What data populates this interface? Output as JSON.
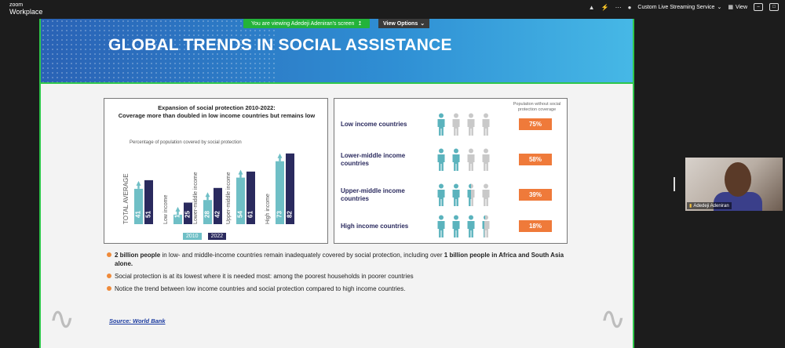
{
  "app": {
    "brand_top": "zoom",
    "brand_bottom": "Workplace",
    "viewing_text": "You are viewing  Adedeji Adeniran's screen",
    "view_options": "View Options",
    "live_streaming": "Custom Live Streaming Service",
    "view": "View"
  },
  "slide": {
    "title": "GLOBAL TRENDS  IN SOCIAL ASSISTANCE",
    "left_panel": {
      "title_line1": "Expansion of social protection 2010-2022:",
      "title_line2": "Coverage more than doubled in low income countries but remains low",
      "subtitle": "Percentage of population covered by social protection",
      "legend": [
        "2010",
        "2022"
      ]
    },
    "right_panel": {
      "header": "Population without social protection coverage",
      "rows": [
        {
          "label": "Low income countries",
          "pct": "75%",
          "covered": 1
        },
        {
          "label": "Lower-middle income countries",
          "pct": "58%",
          "covered": 2
        },
        {
          "label": "Upper-middle income countries",
          "pct": "39%",
          "covered": 2.5
        },
        {
          "label": "High income countries",
          "pct": "18%",
          "covered": 3.3
        }
      ]
    },
    "bullets": [
      {
        "b1": "2 billion people",
        "t1": " in low- and middle-income countries remain inadequately covered by social protection, including over ",
        "b2": "1 billion people in Africa and South Asia alone.",
        "t2": ""
      },
      {
        "b1": "",
        "t1": "Social protection is at its lowest where it is needed most: among the poorest households in poorer countries",
        "b2": "",
        "t2": ""
      },
      {
        "b1": "",
        "t1": "Notice the trend between low income countries and social protection compared to high income countries.",
        "b2": "",
        "t2": ""
      }
    ],
    "source": "Source: World Bank"
  },
  "participant": {
    "name": "Adedeji Adeniran"
  },
  "colors": {
    "bar2010": "#6fbfc6",
    "bar2022": "#2a2a5e",
    "badge": "#ef7a3a",
    "person_covered": "#5bb3bd",
    "person_uncovered": "#c9c9c9"
  },
  "chart_data": {
    "type": "bar",
    "title": "Expansion of social protection 2010-2022: Coverage more than doubled in low income countries but remains low",
    "ylabel": "Percentage of population covered by social protection",
    "categories": [
      "TOTAL AVERAGE",
      "Low income",
      "Lower-middle income",
      "Upper-middle income",
      "High income"
    ],
    "series": [
      {
        "name": "2010",
        "values": [
          41,
          11,
          28,
          54,
          73
        ]
      },
      {
        "name": "2022",
        "values": [
          51,
          25,
          42,
          61,
          82
        ]
      }
    ],
    "ylim": [
      0,
      100
    ],
    "grid": false,
    "legend": "bottom"
  }
}
